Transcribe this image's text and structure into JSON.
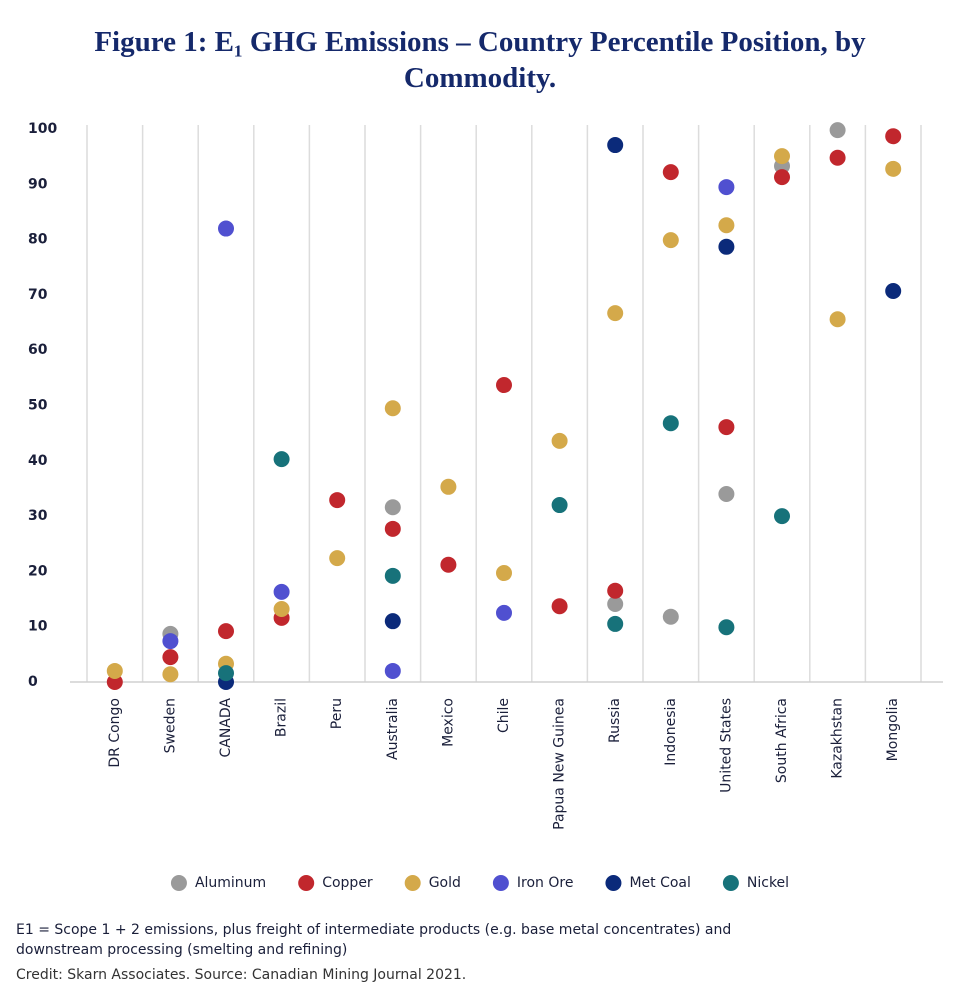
{
  "chart_data": {
    "type": "scatter",
    "title": "Figure 1: E₁ GHG Emissions – Country Percentile Position, by Commodity.",
    "categories": [
      "DR Congo",
      "Sweden",
      "CANADA",
      "Brazil",
      "Peru",
      "Australia",
      "Mexico",
      "Chile",
      "Papua New Guinea",
      "Russia",
      "Indonesia",
      "United States",
      "South Africa",
      "Kazakhstan",
      "Mongolia"
    ],
    "series": [
      {
        "name": "Aluminum",
        "color": "#9a9a9a",
        "values": [
          null,
          8.7,
          null,
          null,
          null,
          31.6,
          null,
          null,
          null,
          14.1,
          11.8,
          34,
          93.3,
          99.8,
          null
        ]
      },
      {
        "name": "Copper",
        "color": "#c1272d",
        "values": [
          0,
          4.5,
          9.2,
          11.6,
          32.9,
          27.7,
          21.2,
          53.7,
          13.7,
          16.5,
          92.2,
          46.1,
          91.3,
          94.8,
          98.7
        ]
      },
      {
        "name": "Gold",
        "color": "#d4a94a",
        "values": [
          2,
          1.4,
          3.3,
          13.2,
          22.4,
          49.5,
          35.3,
          19.7,
          43.6,
          66.7,
          79.9,
          82.6,
          95.1,
          65.6,
          92.8
        ]
      },
      {
        "name": "Iron Ore",
        "color": "#5050d0",
        "values": [
          null,
          7.4,
          82,
          16.3,
          null,
          2,
          null,
          12.5,
          null,
          null,
          null,
          89.5,
          null,
          null,
          null
        ]
      },
      {
        "name": "Met Coal",
        "color": "#0b2a7a",
        "values": [
          null,
          null,
          0,
          null,
          null,
          11,
          null,
          null,
          null,
          97.1,
          null,
          78.7,
          null,
          null,
          70.7
        ]
      },
      {
        "name": "Nickel",
        "color": "#17727a",
        "values": [
          null,
          null,
          1.6,
          40.3,
          null,
          19.2,
          null,
          null,
          32,
          10.5,
          46.8,
          9.9,
          30,
          null,
          null
        ]
      }
    ],
    "ylim": [
      0,
      100
    ],
    "yticks": [
      0,
      10,
      20,
      30,
      40,
      50,
      60,
      70,
      80,
      90,
      100
    ],
    "grid": "vertical",
    "legend": "bottom",
    "note": "E1 = Scope 1 + 2 emissions, plus freight of intermediate products (e.g. base metal concentrates) and downstream processing (smelting and refining)",
    "credit": "Credit: Skarn Associates. Source: Canadian Mining Journal 2021."
  }
}
